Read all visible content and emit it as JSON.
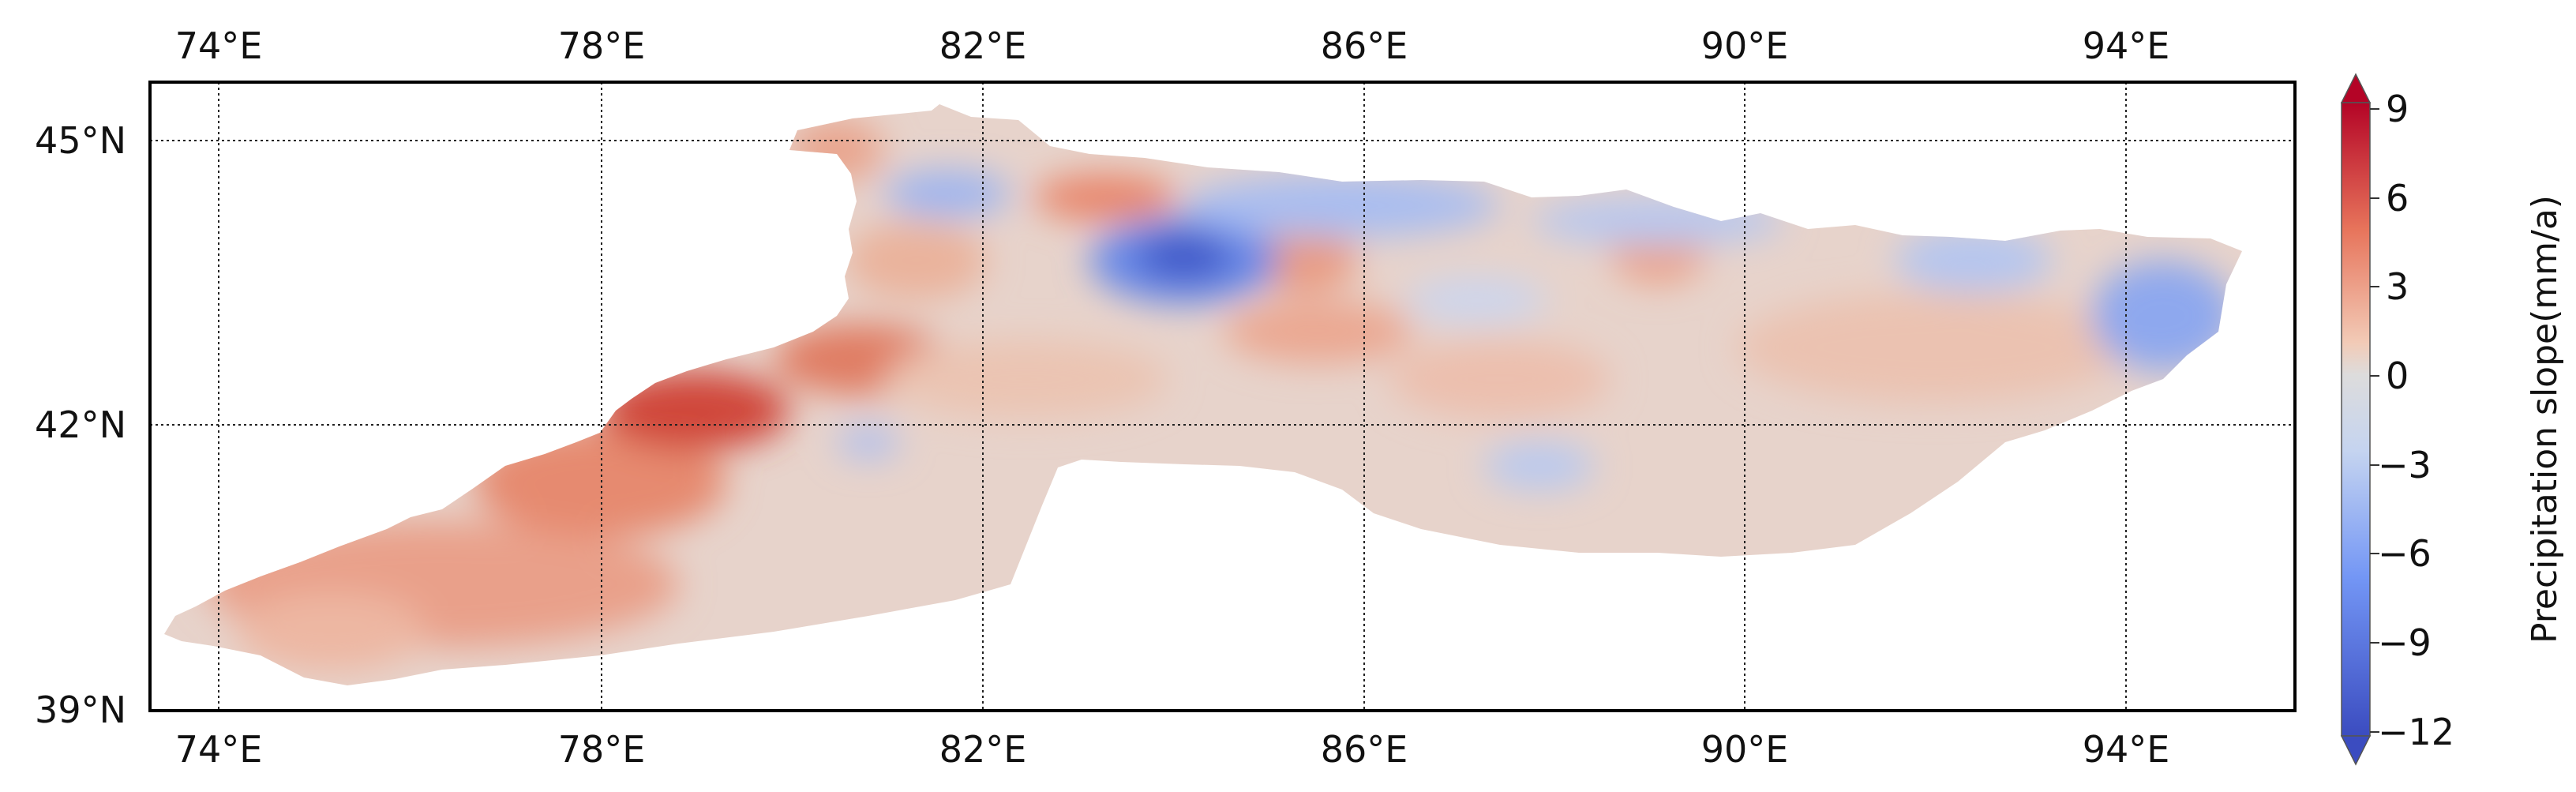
{
  "map": {
    "longitude_ticks": [
      "74°E",
      "78°E",
      "82°E",
      "86°E",
      "90°E",
      "94°E"
    ],
    "latitude_ticks": [
      "45°N",
      "42°N",
      "39°N"
    ],
    "gridlines": "dotted"
  },
  "colorbar": {
    "title": "Precipitation slope(mm/a)",
    "tick_labels": [
      "9",
      "6",
      "3",
      "0",
      "−3",
      "−6",
      "−9",
      "−12"
    ],
    "extend": "both",
    "colors": {
      "max": "#b40426",
      "high": "#e7745b",
      "mid": "#dddcdc",
      "low": "#7396f5",
      "min": "#3b4cc0"
    }
  }
}
